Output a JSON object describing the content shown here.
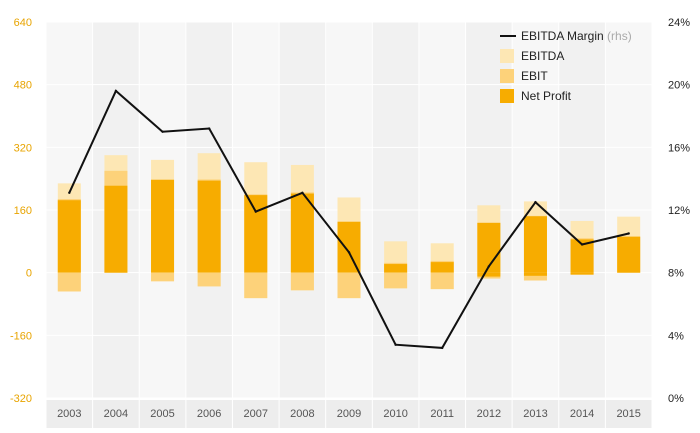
{
  "chart_data": {
    "type": "bar",
    "categories": [
      "2003",
      "2004",
      "2005",
      "2006",
      "2007",
      "2008",
      "2009",
      "2010",
      "2011",
      "2012",
      "2013",
      "2014",
      "2015"
    ],
    "series": [
      {
        "name": "EBITDA",
        "kind": "bar",
        "axis": "left",
        "values": [
          228,
          300,
          288,
          305,
          282,
          275,
          192,
          80,
          75,
          172,
          182,
          132,
          143
        ],
        "negative_values": [
          -48,
          0,
          -22,
          -35,
          -65,
          -45,
          -65,
          -40,
          -42,
          -15,
          -20,
          -5,
          0
        ]
      },
      {
        "name": "EBIT",
        "kind": "bar",
        "axis": "left",
        "values": [
          188,
          260,
          238,
          238,
          200,
          205,
          130,
          25,
          30,
          128,
          145,
          88,
          92
        ],
        "negative_values": [
          -48,
          0,
          -22,
          -35,
          -65,
          -45,
          -65,
          -40,
          -42,
          -15,
          -20,
          -5,
          0
        ]
      },
      {
        "name": "Net Profit",
        "kind": "bar",
        "axis": "left",
        "values": [
          185,
          222,
          237,
          235,
          198,
          202,
          130,
          22,
          27,
          127,
          144,
          85,
          92
        ],
        "negative_values": [
          0,
          0,
          0,
          0,
          0,
          0,
          0,
          0,
          0,
          -10,
          -8,
          -5,
          0
        ]
      },
      {
        "name": "EBITDA Margin",
        "legend_suffix": "(rhs)",
        "kind": "line",
        "axis": "right",
        "values": [
          13.1,
          19.6,
          17.0,
          17.2,
          11.9,
          13.1,
          9.3,
          3.4,
          3.2,
          8.4,
          12.5,
          9.8,
          10.5
        ]
      }
    ],
    "left_axis": {
      "ticks": [
        "640",
        "480",
        "320",
        "160",
        "0",
        "-160",
        "-320"
      ],
      "ylim": [
        -320,
        640
      ]
    },
    "right_axis": {
      "ticks": [
        "24%",
        "20%",
        "16%",
        "12%",
        "8%",
        "4%",
        "0%"
      ],
      "ylim": [
        0,
        24
      ]
    },
    "legend_position": "top-right",
    "colors": {
      "ebitda": "#fde7b4",
      "ebit": "#fdd27a",
      "net_profit": "#f7ac00",
      "margin_line": "#111111"
    }
  }
}
